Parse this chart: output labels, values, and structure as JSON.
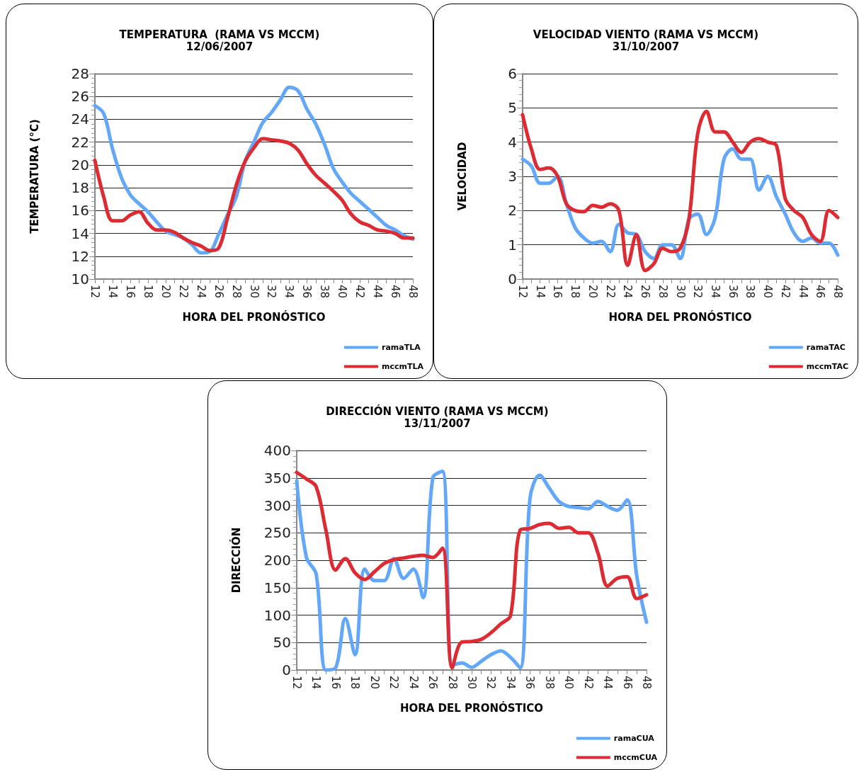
{
  "chart_data": [
    {
      "type": "line",
      "title": "TEMPERATURA  (RAMA VS MCCM)",
      "subtitle": "12/06/2007",
      "xlabel": "HORA DEL PRONÓSTICO",
      "ylabel": "TEMPERATURA (°C)",
      "categories": [
        "12",
        null,
        "14",
        null,
        "16",
        null,
        "18",
        null,
        "20",
        null,
        "22",
        null,
        "24",
        null,
        "26",
        null,
        "28",
        null,
        "30",
        null,
        "32",
        null,
        "34",
        null,
        "36",
        null,
        "38",
        null,
        "40",
        null,
        "42",
        null,
        "44",
        null,
        "46",
        null,
        "48"
      ],
      "series": [
        {
          "name": "ramaTLA",
          "color": "#63a8f8",
          "values": [
            25.2,
            24.5,
            21.4,
            18.9,
            17.4,
            16.6,
            15.9,
            15.0,
            14.2,
            13.9,
            13.6,
            13.0,
            12.3,
            12.4,
            13.9,
            15.6,
            17.2,
            20.3,
            22.0,
            23.7,
            24.6,
            25.7,
            26.8,
            26.5,
            24.9,
            23.6,
            21.8,
            19.7,
            18.5,
            17.5,
            16.8,
            16.1,
            15.4,
            14.7,
            14.3,
            13.8,
            13.5
          ]
        },
        {
          "name": "mccmTLA",
          "color": "#dc2b33",
          "values": [
            20.4,
            17.2,
            15.1,
            15.1,
            15.6,
            15.9,
            14.9,
            14.3,
            14.3,
            14.1,
            13.6,
            13.2,
            12.9,
            12.5,
            12.7,
            15.3,
            18.2,
            20.3,
            21.5,
            22.3,
            22.2,
            22.1,
            21.9,
            21.3,
            20.1,
            19.1,
            18.4,
            17.7,
            16.9,
            15.7,
            15.0,
            14.7,
            14.3,
            14.2,
            14.0,
            13.6,
            13.6
          ]
        }
      ],
      "ylim": [
        10,
        28
      ],
      "yticks": [
        10,
        12,
        14,
        16,
        18,
        20,
        22,
        24,
        26,
        28
      ],
      "grid": "y",
      "legend": "bottom right",
      "marker": "none",
      "line_style": "solid"
    },
    {
      "type": "line",
      "title": "VELOCIDAD VIENTO (RAMA VS MCCM)",
      "subtitle": "31/10/2007",
      "xlabel": "HORA DEL PRONÓSTICO",
      "ylabel": "VELOCIDAD",
      "categories": [
        "12",
        null,
        "14",
        null,
        "16",
        null,
        "18",
        null,
        "20",
        null,
        "22",
        null,
        "24",
        null,
        "26",
        null,
        "28",
        null,
        "30",
        null,
        "32",
        null,
        "34",
        null,
        "36",
        null,
        "38",
        null,
        "40",
        null,
        "42",
        null,
        "44",
        null,
        "46",
        null,
        "48"
      ],
      "series": [
        {
          "name": "ramaTAC",
          "color": "#63a8f8",
          "values": [
            3.5,
            3.3,
            2.8,
            2.8,
            3.0,
            2.2,
            1.5,
            1.2,
            1.05,
            1.1,
            0.8,
            1.6,
            1.35,
            1.3,
            0.8,
            0.6,
            1.0,
            1.0,
            0.6,
            1.75,
            1.9,
            1.3,
            1.8,
            3.5,
            3.8,
            3.5,
            3.5,
            2.6,
            3.0,
            2.4,
            1.9,
            1.35,
            1.1,
            1.2,
            1.05,
            1.05,
            0.7
          ]
        },
        {
          "name": "mccmTAC",
          "color": "#dc2b33",
          "values": [
            4.8,
            3.8,
            3.2,
            3.25,
            3.0,
            2.2,
            2.0,
            1.97,
            2.15,
            2.1,
            2.2,
            2.0,
            0.4,
            1.3,
            0.25,
            0.45,
            0.9,
            0.8,
            0.9,
            1.75,
            4.25,
            4.9,
            4.3,
            4.3,
            4.0,
            3.7,
            4.0,
            4.1,
            4.0,
            3.9,
            2.35,
            2.0,
            1.8,
            1.3,
            1.1,
            2.0,
            1.8
          ]
        }
      ],
      "ylim": [
        0,
        6
      ],
      "yticks": [
        0,
        1,
        2,
        3,
        4,
        5,
        6
      ],
      "grid": "y",
      "legend": "bottom right",
      "marker": "none",
      "line_style": "solid"
    },
    {
      "type": "line",
      "title": "DIRECCIÓN VIENTO (RAMA VS MCCM)",
      "subtitle": "13/11/2007",
      "xlabel": "HORA DEL PRONÓSTICO",
      "ylabel": "DIRECCIÓN",
      "categories": [
        "12",
        null,
        "14",
        null,
        "16",
        null,
        "18",
        null,
        "20",
        null,
        "22",
        null,
        "24",
        null,
        "26",
        null,
        "28",
        null,
        "30",
        null,
        "32",
        null,
        "34",
        null,
        "36",
        null,
        "38",
        null,
        "40",
        null,
        "42",
        null,
        "44",
        null,
        "46",
        null,
        "48"
      ],
      "series": [
        {
          "name": "ramaCUA",
          "color": "#63a8f8",
          "values": [
            345,
            205,
            175,
            0,
            4,
            94,
            28,
            184,
            163,
            163,
            203,
            167,
            184,
            132,
            350,
            362,
            9,
            13,
            5,
            16,
            28,
            35,
            23,
            4,
            312,
            355,
            331,
            307,
            298,
            296,
            294,
            307,
            298,
            291,
            310,
            170,
            87
          ]
        },
        {
          "name": "mccmCUA",
          "color": "#dc2b33",
          "values": [
            360,
            348,
            334,
            255,
            182,
            203,
            177,
            165,
            179,
            194,
            201,
            204,
            207,
            209,
            205,
            222,
            4,
            51,
            52,
            56,
            68,
            84,
            99,
            255,
            258,
            265,
            267,
            258,
            260,
            250,
            250,
            213,
            153,
            167,
            170,
            130,
            137
          ]
        }
      ],
      "ylim": [
        0,
        400
      ],
      "yticks": [
        0,
        50,
        100,
        150,
        200,
        250,
        300,
        350,
        400
      ],
      "grid": "y",
      "legend": "bottom right",
      "marker": "none",
      "line_style": "solid"
    }
  ]
}
